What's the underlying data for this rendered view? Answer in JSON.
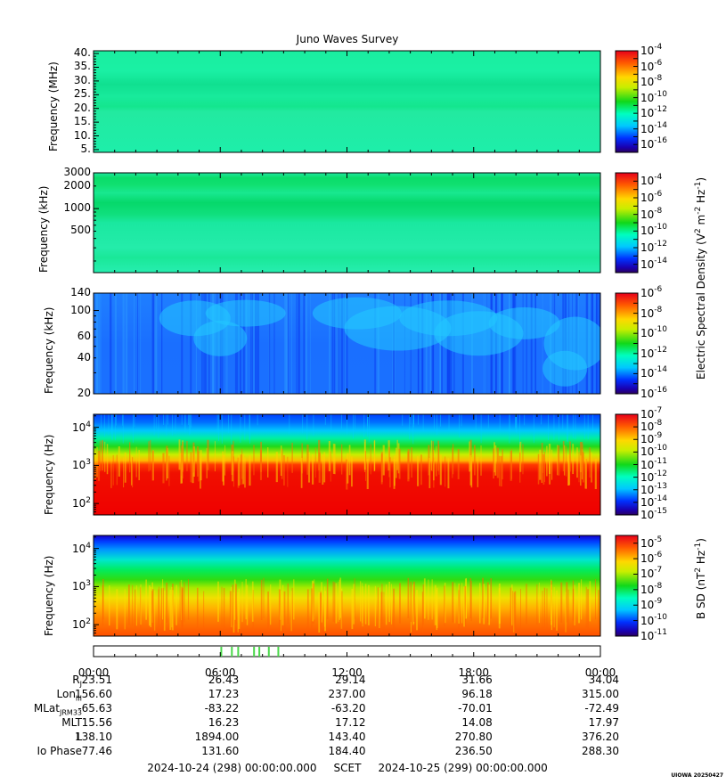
{
  "chart_data": {
    "type": "heatmap",
    "title": "Juno Waves Survey",
    "panels": [
      {
        "id": "p1",
        "ylabel": "Frequency (MHz)",
        "yscale": "linear",
        "yrange": [
          4,
          41
        ],
        "yticks": [
          "5.",
          "10.",
          "15.",
          "20.",
          "25.",
          "30.",
          "35.",
          "40."
        ],
        "ytick_values": [
          5,
          10,
          15,
          20,
          25,
          30,
          35,
          40
        ],
        "colorbar_exponents": [
          "-4",
          "-6",
          "-8",
          "-10",
          "-12",
          "-14",
          "-16"
        ],
        "colorbar_range": [
          -17,
          -4
        ]
      },
      {
        "id": "p2",
        "ylabel": "Frequency (kHz)",
        "yscale": "log",
        "yrange": [
          140,
          3000
        ],
        "yticks": [
          "3000",
          "2000",
          "1000",
          "500"
        ],
        "ytick_values": [
          3000,
          2000,
          1000,
          500
        ],
        "colorbar_exponents": [
          "-4",
          "-6",
          "-8",
          "-10",
          "-12",
          "-14"
        ],
        "colorbar_range": [
          -15,
          -3
        ]
      },
      {
        "id": "p3",
        "ylabel": "Frequency (kHz)",
        "yscale": "log",
        "yrange": [
          20,
          140
        ],
        "yticks": [
          "140",
          "100",
          "60",
          "40",
          "20"
        ],
        "ytick_values": [
          140,
          100,
          60,
          40,
          20
        ],
        "colorbar_exponents": [
          "-6",
          "-8",
          "-10",
          "-12",
          "-14",
          "-16"
        ],
        "colorbar_range": [
          -16,
          -6
        ]
      },
      {
        "id": "p4",
        "ylabel": "Frequency (Hz)",
        "yscale": "log",
        "yrange": [
          50,
          22000
        ],
        "yticks": [
          "10",
          "10",
          "10"
        ],
        "ytick_exp": [
          "4",
          "3",
          "2"
        ],
        "ytick_values": [
          10000,
          1000,
          100
        ],
        "colorbar_exponents": [
          "-7",
          "-8",
          "-9",
          "-10",
          "-11",
          "-12",
          "-13",
          "-14",
          "-15"
        ],
        "colorbar_range": [
          -15,
          -7
        ]
      },
      {
        "id": "p5",
        "ylabel": "Frequency (Hz)",
        "yscale": "log",
        "yrange": [
          50,
          22000
        ],
        "yticks": [
          "10",
          "10",
          "10"
        ],
        "ytick_exp": [
          "4",
          "3",
          "2"
        ],
        "ytick_values": [
          10000,
          1000,
          100
        ],
        "colorbar_exponents": [
          "-5",
          "-6",
          "-7",
          "-8",
          "-9",
          "-10",
          "-11"
        ],
        "colorbar_range": [
          -11,
          -4.5
        ]
      }
    ],
    "colorbar_base": "10",
    "e_label": {
      "main": "Electric Spectral Density (V",
      "sup1": "2",
      "mid": " m",
      "sup2": "-2",
      "mid2": " Hz",
      "sup3": "-1",
      "end": ")"
    },
    "b_label": {
      "main": "B SD (nT",
      "sup1": "2",
      "mid": " Hz",
      "sup2": "-1",
      "end": ")"
    },
    "x_ticks": [
      "00:00",
      "06:00",
      "12:00",
      "18:00",
      "00:00"
    ],
    "x_hours": [
      0,
      6,
      12,
      18,
      24
    ],
    "mode_marks_hours": [
      6.05,
      6.55,
      6.85,
      7.6,
      7.85,
      8.3,
      8.75
    ]
  },
  "ephemeris": {
    "labels": {
      "rj": "R",
      "rj_sub": "J",
      "lon": "Lon",
      "lon_sub": "III",
      "mlat": "MLat",
      "mlat_sub": "JRM33",
      "mlt": "MLT",
      "l": "L",
      "io": "Io Phase"
    },
    "rows": {
      "rj": [
        "23.51",
        "26.43",
        "29.14",
        "31.66",
        "34.04"
      ],
      "lon": [
        "156.60",
        "17.23",
        "237.00",
        "96.18",
        "315.00"
      ],
      "mlat": [
        "-65.63",
        "-83.22",
        "-63.20",
        "-70.01",
        "-72.49"
      ],
      "mlt": [
        "15.56",
        "16.23",
        "17.12",
        "14.08",
        "17.97"
      ],
      "l": [
        "138.10",
        "1894.00",
        "143.40",
        "270.80",
        "376.20"
      ],
      "io": [
        "77.46",
        "131.60",
        "184.40",
        "236.50",
        "288.30"
      ]
    }
  },
  "footer": "2024-10-24 (298) 00:00:00.000     SCET     2024-10-25 (299) 00:00:00.000",
  "credit": "UIOWA 20250427"
}
